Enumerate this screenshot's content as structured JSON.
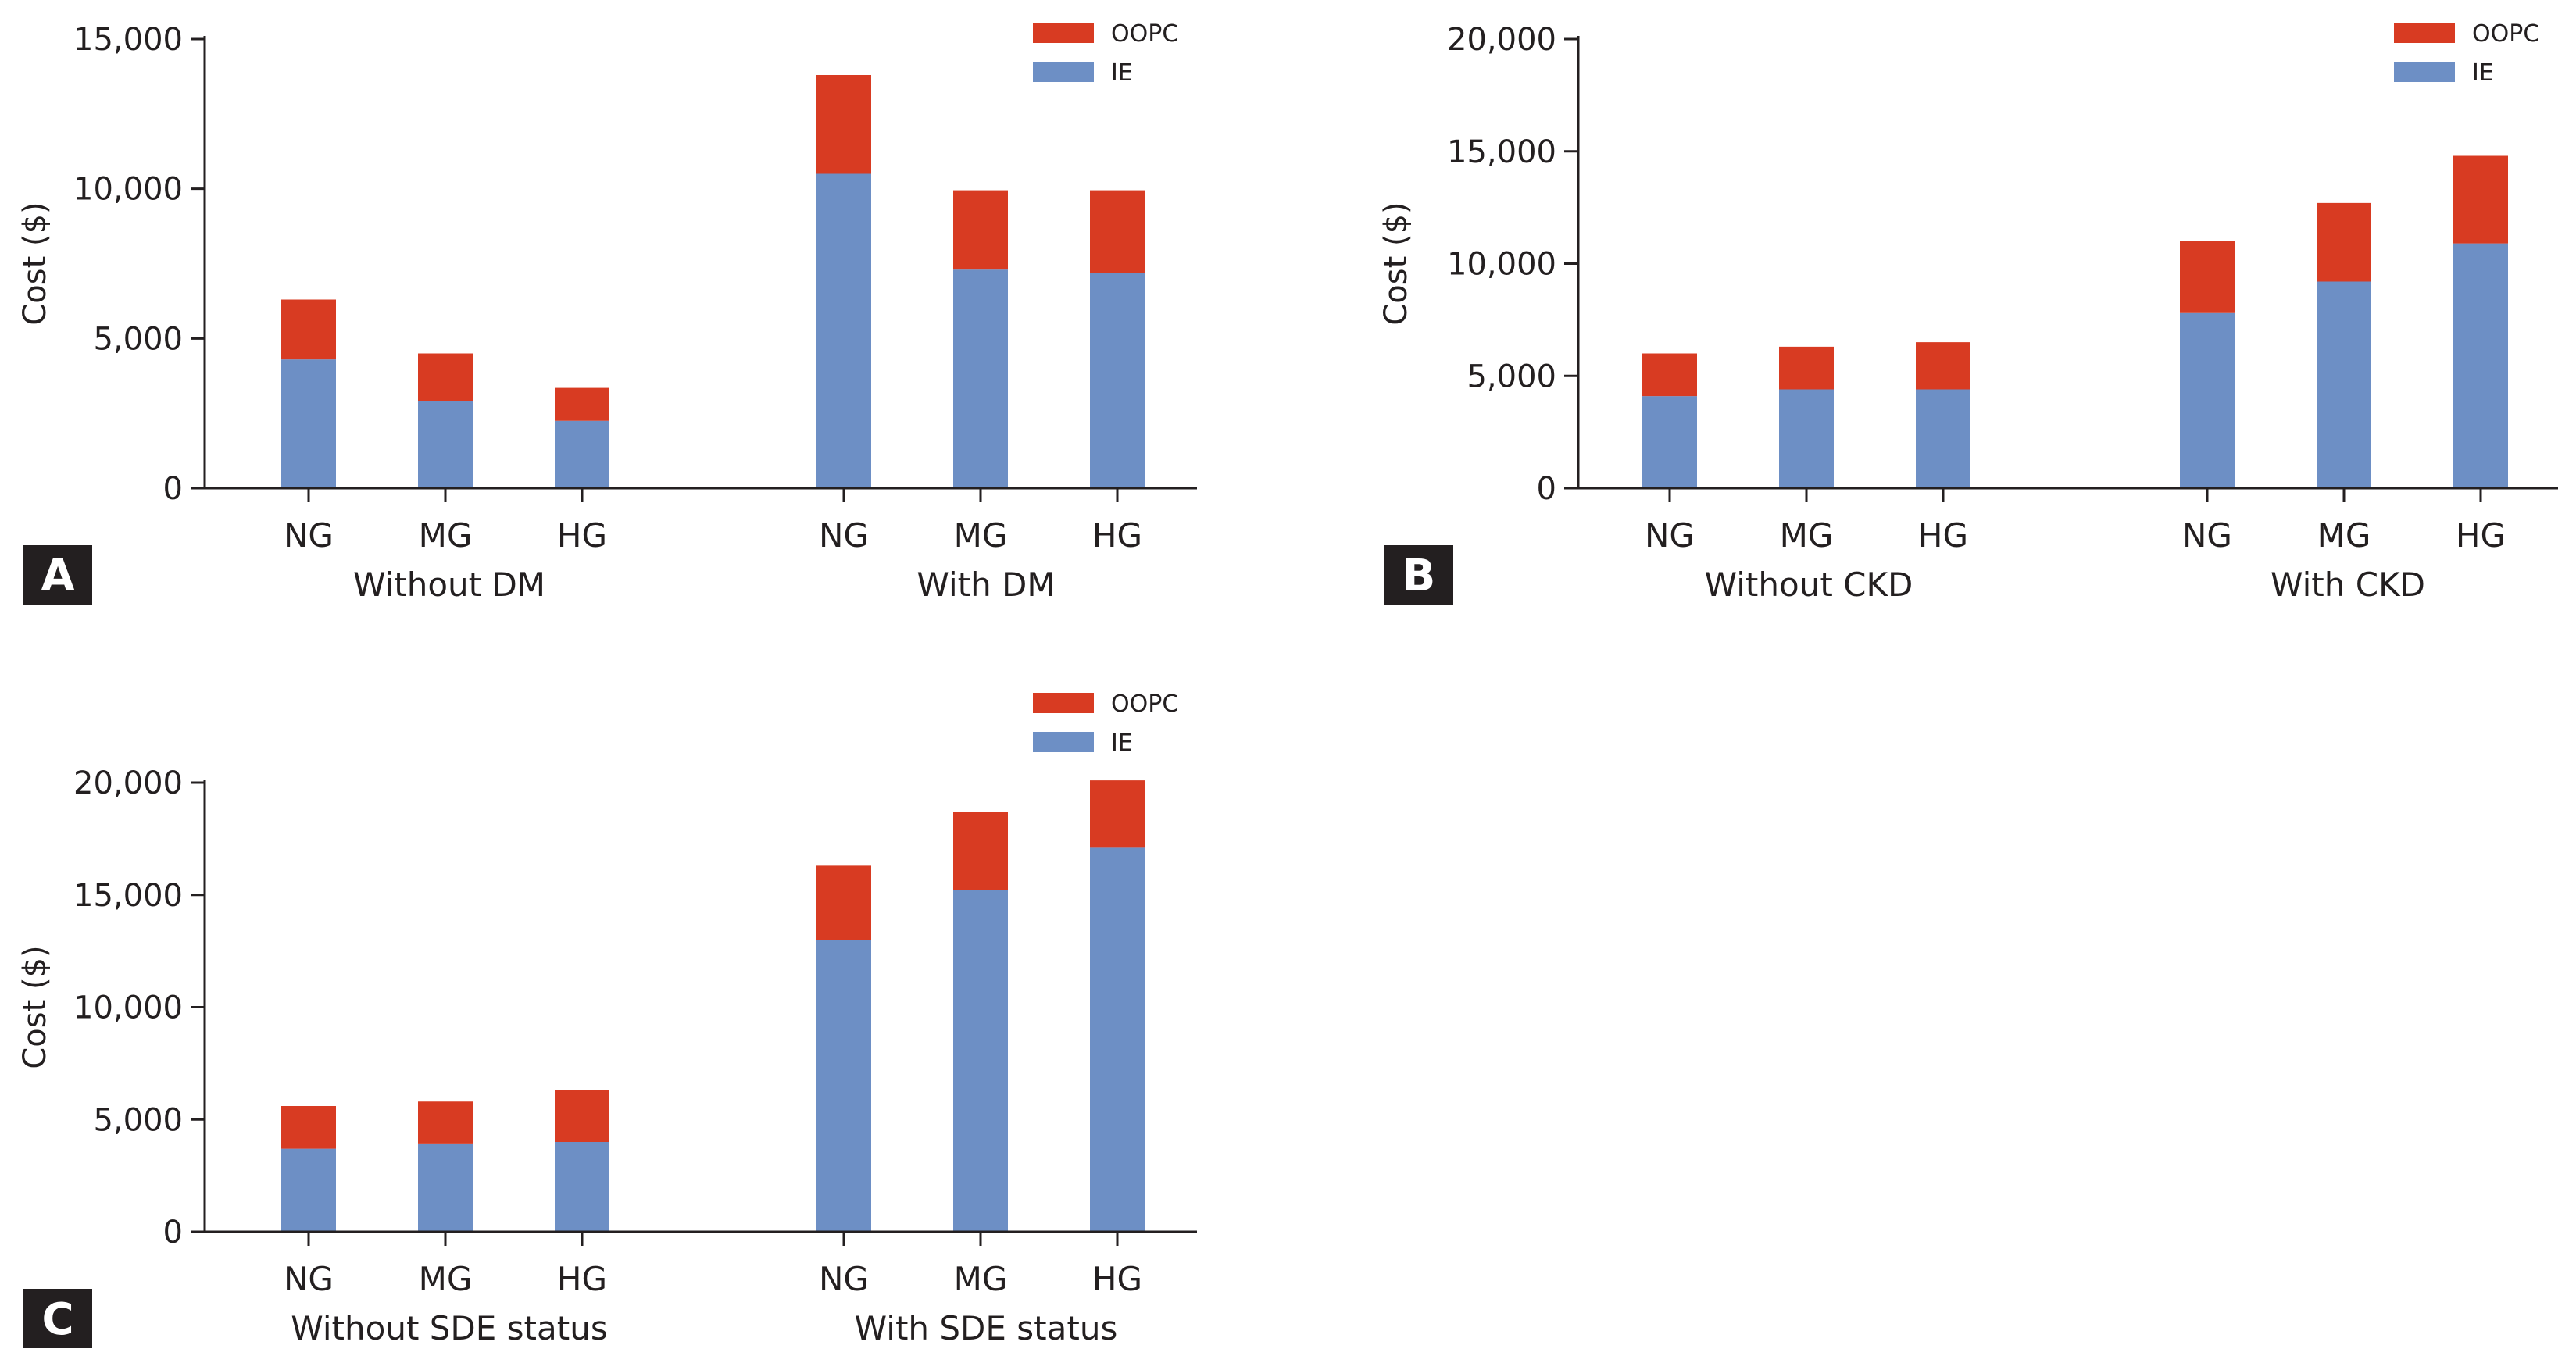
{
  "colors": {
    "IE": "#6d8fc5",
    "OOPC": "#d83b22",
    "axis": "#231f20",
    "panel_box": "#231f20"
  },
  "chart_data": [
    {
      "type": "bar",
      "stacked": true,
      "panel": "A",
      "ylabel": "Cost ($)",
      "ylim": [
        0,
        15000
      ],
      "yticks": [
        0,
        5000,
        10000,
        15000
      ],
      "ytick_labels": [
        "0",
        "5,000",
        "10,000",
        "15,000"
      ],
      "categories": [
        "NG",
        "MG",
        "HG",
        "NG",
        "MG",
        "HG"
      ],
      "groups": [
        "Without DM",
        "With DM"
      ],
      "legend": [
        "OOPC",
        "IE"
      ],
      "series": [
        {
          "name": "IE",
          "values": [
            4300,
            2900,
            2250,
            10500,
            7300,
            7200
          ]
        },
        {
          "name": "OOPC",
          "values": [
            2000,
            1600,
            1100,
            3300,
            2650,
            2750
          ]
        }
      ]
    },
    {
      "type": "bar",
      "stacked": true,
      "panel": "B",
      "ylabel": "Cost ($)",
      "ylim": [
        0,
        20000
      ],
      "yticks": [
        0,
        5000,
        10000,
        15000,
        20000
      ],
      "ytick_labels": [
        "0",
        "5,000",
        "10,000",
        "15,000",
        "20,000"
      ],
      "categories": [
        "NG",
        "MG",
        "HG",
        "NG",
        "MG",
        "HG"
      ],
      "groups": [
        "Without CKD",
        "With CKD"
      ],
      "legend": [
        "OOPC",
        "IE"
      ],
      "series": [
        {
          "name": "IE",
          "values": [
            4100,
            4400,
            4400,
            7800,
            9200,
            10900
          ]
        },
        {
          "name": "OOPC",
          "values": [
            1900,
            1900,
            2100,
            3200,
            3500,
            3900
          ]
        }
      ]
    },
    {
      "type": "bar",
      "stacked": true,
      "panel": "C",
      "ylabel": "Cost ($)",
      "ylim": [
        0,
        20000
      ],
      "yticks": [
        0,
        5000,
        10000,
        15000,
        20000
      ],
      "ytick_labels": [
        "0",
        "5,000",
        "10,000",
        "15,000",
        "20,000"
      ],
      "categories": [
        "NG",
        "MG",
        "HG",
        "NG",
        "MG",
        "HG"
      ],
      "groups": [
        "Without SDE status",
        "With SDE status"
      ],
      "legend": [
        "OOPC",
        "IE"
      ],
      "series": [
        {
          "name": "IE",
          "values": [
            3700,
            3900,
            4000,
            13000,
            15200,
            17100
          ]
        },
        {
          "name": "OOPC",
          "values": [
            1900,
            1900,
            2300,
            3300,
            3500,
            3000
          ]
        }
      ]
    }
  ]
}
